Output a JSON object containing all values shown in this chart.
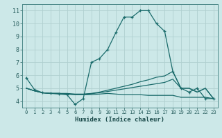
{
  "xlabel": "Humidex (Indice chaleur)",
  "bg_color": "#cce8e8",
  "grid_color": "#b0d0d0",
  "line_color": "#1a6b6b",
  "x_ticks": [
    0,
    1,
    2,
    3,
    4,
    5,
    6,
    7,
    8,
    9,
    10,
    11,
    12,
    13,
    14,
    15,
    16,
    17,
    18,
    19,
    20,
    21,
    22,
    23
  ],
  "y_ticks": [
    4,
    5,
    6,
    7,
    8,
    9,
    10,
    11
  ],
  "xlim": [
    -0.5,
    23.5
  ],
  "ylim": [
    3.5,
    11.5
  ],
  "lines": [
    {
      "x": [
        0,
        1,
        2,
        3,
        4,
        5,
        6,
        7,
        8,
        9,
        10,
        11,
        12,
        13,
        14,
        15,
        16,
        17,
        18,
        19,
        20,
        21,
        22,
        23
      ],
      "y": [
        5.8,
        4.9,
        4.65,
        4.6,
        4.55,
        4.5,
        3.75,
        4.2,
        7.0,
        7.3,
        8.0,
        9.3,
        10.5,
        10.5,
        11.0,
        11.0,
        10.0,
        9.4,
        6.3,
        5.0,
        4.7,
        5.0,
        4.2,
        4.2
      ],
      "marker": "+"
    },
    {
      "x": [
        0,
        1,
        2,
        3,
        4,
        5,
        6,
        7,
        8,
        9,
        10,
        11,
        12,
        13,
        14,
        15,
        16,
        17,
        18,
        19,
        20,
        21,
        22,
        23
      ],
      "y": [
        5.0,
        4.8,
        4.65,
        4.6,
        4.6,
        4.6,
        4.55,
        4.55,
        4.6,
        4.7,
        4.85,
        5.0,
        5.15,
        5.3,
        5.5,
        5.65,
        5.85,
        5.95,
        6.3,
        5.0,
        5.0,
        4.7,
        5.0,
        4.2
      ],
      "marker": null
    },
    {
      "x": [
        0,
        1,
        2,
        3,
        4,
        5,
        6,
        7,
        8,
        9,
        10,
        11,
        12,
        13,
        14,
        15,
        16,
        17,
        18,
        19,
        20,
        21,
        22,
        23
      ],
      "y": [
        5.0,
        4.8,
        4.65,
        4.6,
        4.6,
        4.55,
        4.5,
        4.5,
        4.5,
        4.55,
        4.6,
        4.55,
        4.5,
        4.5,
        4.5,
        4.45,
        4.45,
        4.45,
        4.45,
        4.3,
        4.3,
        4.3,
        4.3,
        4.2
      ],
      "marker": null
    },
    {
      "x": [
        0,
        1,
        2,
        3,
        4,
        5,
        6,
        7,
        8,
        9,
        10,
        11,
        12,
        13,
        14,
        15,
        16,
        17,
        18,
        19,
        20,
        21,
        22,
        23
      ],
      "y": [
        5.0,
        4.8,
        4.65,
        4.6,
        4.6,
        4.55,
        4.52,
        4.52,
        4.58,
        4.65,
        4.75,
        4.85,
        4.95,
        5.05,
        5.15,
        5.25,
        5.35,
        5.45,
        5.7,
        5.0,
        5.0,
        4.7,
        5.0,
        4.2
      ],
      "marker": null
    }
  ]
}
